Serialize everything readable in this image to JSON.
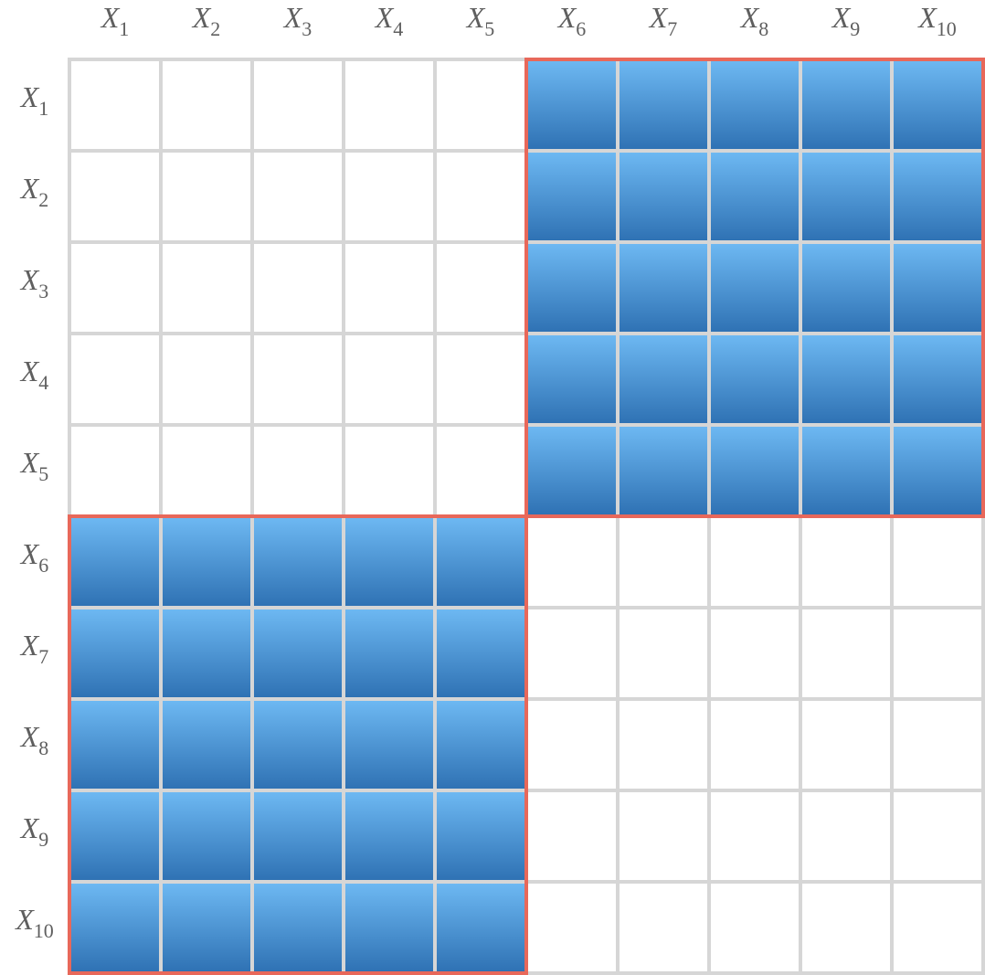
{
  "matrix": {
    "size": 10,
    "variable_symbol": "X",
    "labels": [
      {
        "base": "X",
        "sub": "1"
      },
      {
        "base": "X",
        "sub": "2"
      },
      {
        "base": "X",
        "sub": "3"
      },
      {
        "base": "X",
        "sub": "4"
      },
      {
        "base": "X",
        "sub": "5"
      },
      {
        "base": "X",
        "sub": "6"
      },
      {
        "base": "X",
        "sub": "7"
      },
      {
        "base": "X",
        "sub": "8"
      },
      {
        "base": "X",
        "sub": "9"
      },
      {
        "base": "X",
        "sub": "10"
      }
    ],
    "filled_cells": [
      [
        0,
        0,
        0,
        0,
        0,
        1,
        1,
        1,
        1,
        1
      ],
      [
        0,
        0,
        0,
        0,
        0,
        1,
        1,
        1,
        1,
        1
      ],
      [
        0,
        0,
        0,
        0,
        0,
        1,
        1,
        1,
        1,
        1
      ],
      [
        0,
        0,
        0,
        0,
        0,
        1,
        1,
        1,
        1,
        1
      ],
      [
        0,
        0,
        0,
        0,
        0,
        1,
        1,
        1,
        1,
        1
      ],
      [
        1,
        1,
        1,
        1,
        1,
        0,
        0,
        0,
        0,
        0
      ],
      [
        1,
        1,
        1,
        1,
        1,
        0,
        0,
        0,
        0,
        0
      ],
      [
        1,
        1,
        1,
        1,
        1,
        0,
        0,
        0,
        0,
        0
      ],
      [
        1,
        1,
        1,
        1,
        1,
        0,
        0,
        0,
        0,
        0
      ],
      [
        1,
        1,
        1,
        1,
        1,
        0,
        0,
        0,
        0,
        0
      ]
    ],
    "highlighted_blocks": [
      {
        "rows": [
          1,
          5
        ],
        "cols": [
          6,
          10
        ]
      },
      {
        "rows": [
          6,
          10
        ],
        "cols": [
          1,
          5
        ]
      }
    ]
  },
  "colors": {
    "background": "#ffffff",
    "grid_line": "#d6d6d6",
    "empty_cell": "#ffffff",
    "filled_cell_top": "#6db8f2",
    "filled_cell_bottom": "#2f72b4",
    "highlight_border": "#e8685a",
    "label_text": "#5f5f5f"
  }
}
